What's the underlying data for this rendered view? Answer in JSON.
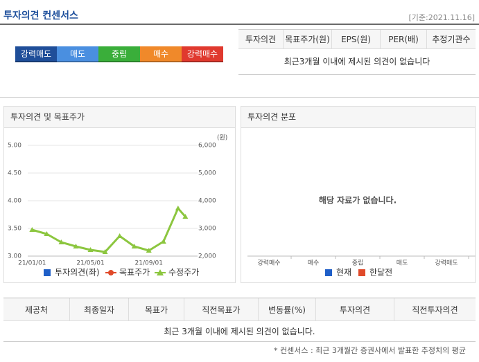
{
  "header": {
    "title": "투자의견 컨센서스",
    "date": "[기준:2021.11.16]"
  },
  "rating_scale": [
    {
      "label": "강력매도",
      "color": "#1f4e99"
    },
    {
      "label": "매도",
      "color": "#4a8fe0"
    },
    {
      "label": "중립",
      "color": "#3aae3a"
    },
    {
      "label": "매수",
      "color": "#f0892a"
    },
    {
      "label": "강력매수",
      "color": "#e0392e"
    }
  ],
  "summary_table": {
    "columns": [
      "투자의견",
      "목표주가(원)",
      "EPS(원)",
      "PER(배)",
      "추정기관수"
    ],
    "message": "최근3개월 이내에 제시된 의견이 없습니다"
  },
  "chart_data": {
    "type": "line",
    "title": "투자의견 및 목표주가",
    "x": [
      0,
      1,
      2,
      3,
      4,
      5,
      6,
      7,
      8,
      9,
      10,
      10.5
    ],
    "xlim": [
      -0.3,
      11.1
    ],
    "xticks": [
      {
        "value": 0,
        "label": "21/01/01"
      },
      {
        "value": 4,
        "label": "21/05/01"
      },
      {
        "value": 8,
        "label": "21/09/01"
      }
    ],
    "ylim": [
      3,
      5
    ],
    "yticks": [
      {
        "value": 3,
        "label": "3.00"
      },
      {
        "value": 3.5,
        "label": "3.50"
      },
      {
        "value": 4,
        "label": "4.00"
      },
      {
        "value": 4.5,
        "label": "4.50"
      },
      {
        "value": 5,
        "label": "5.00"
      }
    ],
    "y2lim": [
      2000,
      6000
    ],
    "y2ticks": [
      {
        "value": 2000,
        "label": "2,000"
      },
      {
        "value": 3000,
        "label": "3,000"
      },
      {
        "value": 4000,
        "label": "4,000"
      },
      {
        "value": 5000,
        "label": "5,000"
      },
      {
        "value": 6000,
        "label": "6,000"
      }
    ],
    "y2_unit": "(원)",
    "grid": true,
    "series": [
      {
        "name": "투자의견(좌)",
        "color": "#1f5fc8",
        "marker": "square",
        "values": [
          null,
          null,
          null,
          null,
          null,
          null,
          null,
          null,
          null,
          null,
          null,
          null
        ]
      },
      {
        "name": "목표주가",
        "color": "#e04a2a",
        "marker": "circle",
        "axis": "y2",
        "values": [
          null,
          null,
          null,
          null,
          null,
          null,
          null,
          null,
          null,
          null,
          null,
          null
        ]
      },
      {
        "name": "수정주가",
        "color": "#8cc63f",
        "marker": "triangle",
        "axis": "y2",
        "values": [
          2950,
          2800,
          2500,
          2350,
          2225,
          2150,
          2725,
          2350,
          2200,
          2525,
          3725,
          3425
        ]
      }
    ]
  },
  "distribution": {
    "title": "투자의견 분포",
    "message": "해당 자료가 없습니다.",
    "categories": [
      "강력매수",
      "매수",
      "중립",
      "매도",
      "강력매도"
    ],
    "legend": [
      {
        "name": "현재",
        "color": "#1f5fc8"
      },
      {
        "name": "한달전",
        "color": "#e04a2a"
      }
    ]
  },
  "detail_table": {
    "columns": [
      "제공처",
      "최종일자",
      "목표가",
      "직전목표가",
      "변동률(%)",
      "투자의견",
      "직전투자의견"
    ],
    "message": "최근 3개월 이내에 제시된 의견이 없습니다."
  },
  "footnote": "* 컨센서스 : 최근 3개월간 증권사에서 발표한 추정치의 평균"
}
